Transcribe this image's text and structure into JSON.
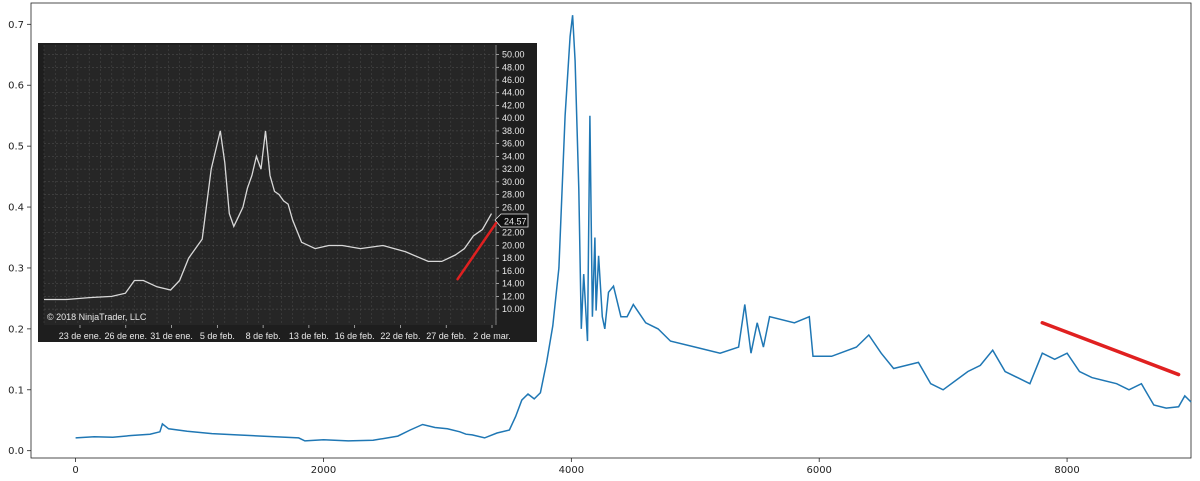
{
  "chart_data": [
    {
      "type": "line",
      "title": "",
      "xlabel": "",
      "ylabel": "",
      "xlim": [
        -360,
        9000
      ],
      "ylim": [
        -0.012,
        0.735
      ],
      "x_ticks": [
        0,
        2000,
        4000,
        6000,
        8000
      ],
      "y_ticks": [
        0.0,
        0.1,
        0.2,
        0.3,
        0.4,
        0.5,
        0.6,
        0.7
      ],
      "x_tick_labels": [
        "0",
        "2000",
        "4000",
        "6000",
        "8000"
      ],
      "y_tick_labels": [
        "0.0",
        "0.1",
        "0.2",
        "0.3",
        "0.4",
        "0.5",
        "0.6",
        "0.7"
      ],
      "grid": false,
      "series": [
        {
          "color": "#1f77b4",
          "x": [
            0,
            150,
            300,
            450,
            600,
            680,
            700,
            750,
            900,
            1100,
            1300,
            1500,
            1800,
            1850,
            2000,
            2200,
            2400,
            2600,
            2700,
            2800,
            2900,
            3000,
            3100,
            3150,
            3200,
            3300,
            3400,
            3500,
            3550,
            3600,
            3650,
            3700,
            3750,
            3800,
            3850,
            3900,
            3950,
            3990,
            4010,
            4030,
            4060,
            4080,
            4100,
            4130,
            4150,
            4170,
            4190,
            4200,
            4220,
            4250,
            4270,
            4300,
            4340,
            4400,
            4450,
            4500,
            4600,
            4700,
            4800,
            5000,
            5200,
            5350,
            5400,
            5450,
            5500,
            5550,
            5600,
            5800,
            5920,
            5950,
            6100,
            6300,
            6400,
            6500,
            6600,
            6800,
            6900,
            7000,
            7200,
            7300,
            7400,
            7500,
            7600,
            7700,
            7800,
            7900,
            8000,
            8100,
            8200,
            8400,
            8500,
            8600,
            8700,
            8800,
            8900,
            8950,
            9000
          ],
          "y": [
            0.021,
            0.023,
            0.022,
            0.025,
            0.027,
            0.031,
            0.044,
            0.036,
            0.032,
            0.028,
            0.026,
            0.024,
            0.021,
            0.016,
            0.018,
            0.016,
            0.017,
            0.024,
            0.034,
            0.043,
            0.038,
            0.036,
            0.031,
            0.027,
            0.026,
            0.021,
            0.029,
            0.034,
            0.056,
            0.083,
            0.093,
            0.085,
            0.095,
            0.145,
            0.205,
            0.3,
            0.55,
            0.68,
            0.715,
            0.64,
            0.43,
            0.2,
            0.29,
            0.18,
            0.55,
            0.22,
            0.35,
            0.23,
            0.32,
            0.22,
            0.2,
            0.26,
            0.27,
            0.22,
            0.22,
            0.24,
            0.21,
            0.2,
            0.18,
            0.17,
            0.16,
            0.17,
            0.24,
            0.16,
            0.21,
            0.17,
            0.22,
            0.21,
            0.22,
            0.155,
            0.155,
            0.17,
            0.19,
            0.16,
            0.135,
            0.145,
            0.11,
            0.1,
            0.13,
            0.14,
            0.165,
            0.13,
            0.12,
            0.11,
            0.16,
            0.15,
            0.16,
            0.13,
            0.12,
            0.11,
            0.1,
            0.11,
            0.075,
            0.07,
            0.072,
            0.09,
            0.08
          ]
        }
      ],
      "annotation_line": {
        "color": "#e02020",
        "x": [
          7800,
          8900
        ],
        "y": [
          0.21,
          0.125
        ]
      }
    },
    {
      "type": "line",
      "title": "",
      "watermark": "© 2018 NinjaTrader, LLC",
      "last_price_label": "24.57",
      "background": "#262626",
      "categories": [
        "23 de ene.",
        "26 de ene.",
        "31 de ene.",
        "5 de feb.",
        "8 de feb.",
        "13 de feb.",
        "16 de feb.",
        "22 de feb.",
        "27 de feb.",
        "2 de mar."
      ],
      "y_tick_labels": [
        "10.00",
        "12.00",
        "14.00",
        "16.00",
        "18.00",
        "20.00",
        "22.00",
        "24.00",
        "26.00",
        "28.00",
        "30.00",
        "32.00",
        "34.00",
        "36.00",
        "38.00",
        "40.00",
        "42.00",
        "44.00",
        "46.00",
        "48.00",
        "50.00"
      ],
      "ylim": [
        7.5,
        51.5
      ],
      "xlim": [
        0,
        100
      ],
      "series": [
        {
          "color": "#d8d8d8",
          "x": [
            0,
            5,
            10,
            15,
            18,
            20,
            22,
            25,
            28,
            30,
            32,
            35,
            37,
            39,
            40,
            41,
            42,
            43,
            44,
            45,
            46,
            47,
            48,
            49,
            50,
            51,
            52,
            53,
            54,
            55,
            57,
            60,
            63,
            66,
            70,
            75,
            80,
            85,
            88,
            91,
            93,
            95,
            97,
            99
          ],
          "y": [
            11.5,
            11.5,
            11.8,
            12.0,
            12.5,
            14.5,
            14.5,
            13.5,
            13.0,
            14.5,
            18.0,
            21.0,
            32.0,
            38.0,
            33.0,
            25.0,
            23.0,
            24.5,
            26.0,
            29.0,
            31.0,
            34.0,
            32.0,
            38.0,
            31.0,
            28.5,
            28.0,
            27.0,
            26.5,
            24.0,
            20.5,
            19.5,
            20.0,
            20.0,
            19.5,
            20.0,
            19.0,
            17.5,
            17.5,
            18.5,
            19.5,
            21.5,
            22.5,
            25.0
          ]
        }
      ],
      "annotation_line": {
        "color": "#e02020",
        "x": [
          91.5,
          100
        ],
        "y": [
          14.7,
          23.5
        ]
      }
    }
  ]
}
